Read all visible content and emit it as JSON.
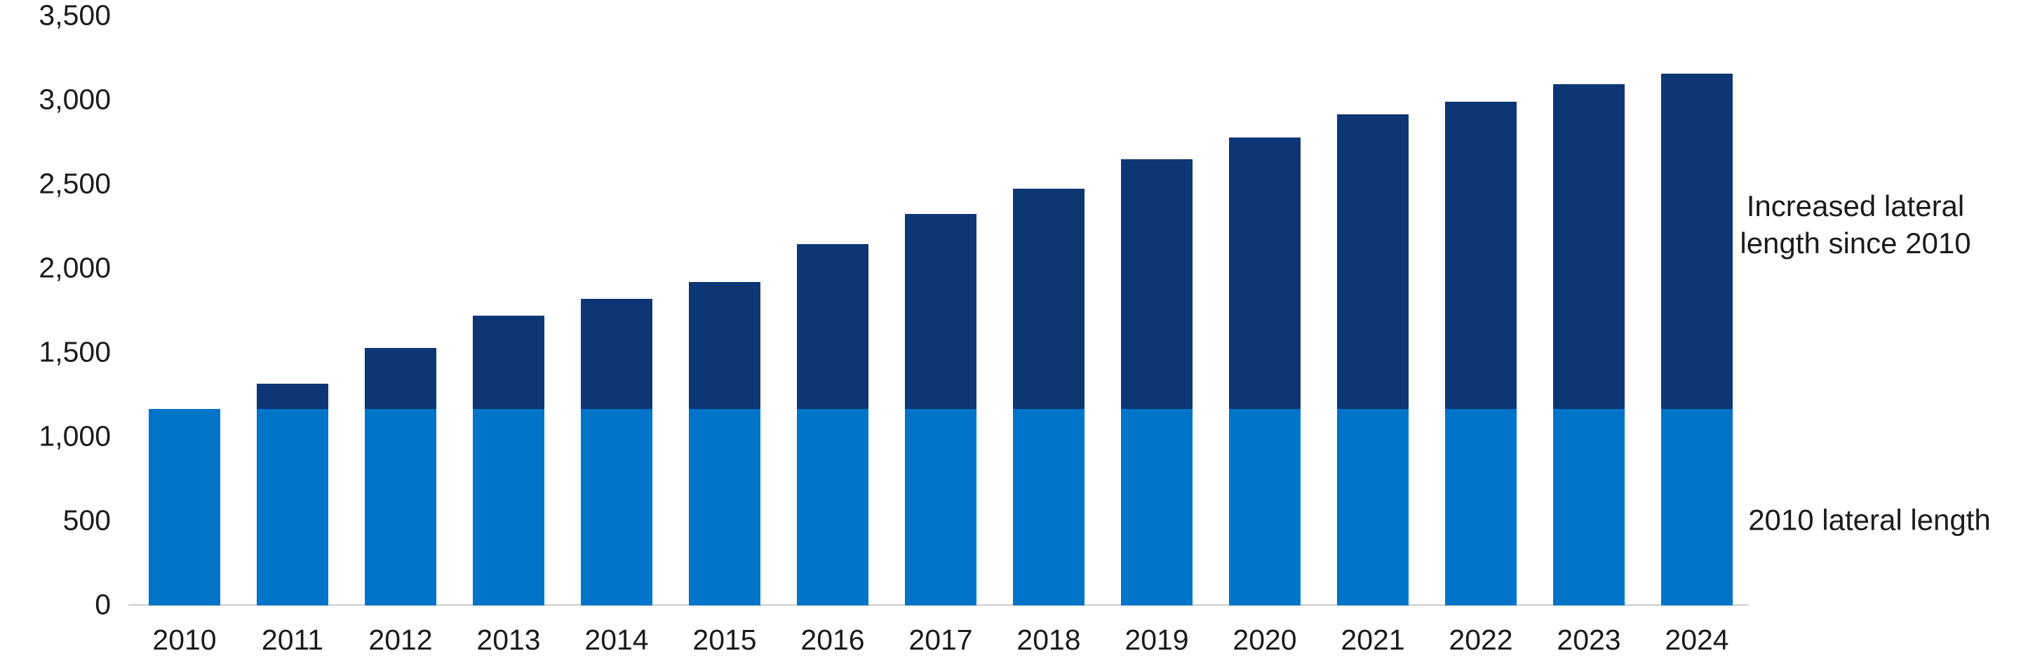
{
  "chart_data": {
    "type": "bar",
    "stacked": true,
    "title": "",
    "categories": [
      "2010",
      "2011",
      "2012",
      "2013",
      "2014",
      "2015",
      "2016",
      "2017",
      "2018",
      "2019",
      "2020",
      "2021",
      "2022",
      "2023",
      "2024"
    ],
    "series": [
      {
        "name": "2010 lateral length",
        "color": "#0074c8",
        "values": [
          1165,
          1165,
          1165,
          1165,
          1165,
          1165,
          1165,
          1165,
          1165,
          1165,
          1165,
          1165,
          1165,
          1165,
          1165
        ]
      },
      {
        "name": "Increased lateral length since 2010",
        "color": "#0d3774",
        "values": [
          0,
          150,
          365,
          555,
          655,
          755,
          980,
          1160,
          1310,
          1485,
          1615,
          1750,
          1825,
          1930,
          1995
        ]
      }
    ],
    "totals": [
      1165,
      1315,
      1530,
      1720,
      1820,
      1920,
      2145,
      2325,
      2475,
      2650,
      2780,
      2915,
      2990,
      3095,
      3160
    ],
    "xlabel": "",
    "ylabel": "",
    "ylim": [
      0,
      3500
    ],
    "ytick_interval": 500,
    "ytick_values": [
      0,
      500,
      1000,
      1500,
      2000,
      2500,
      3000,
      3500
    ],
    "ytick_labels": [
      "0",
      "500",
      "1,000",
      "1,500",
      "2,000",
      "2,500",
      "3,000",
      "3,500"
    ],
    "grid": false,
    "legend_position": "right-annotations",
    "annotations": [
      {
        "text": "Increased lateral length since 2010",
        "lines": [
          "Increased lateral",
          "length since 2010"
        ]
      },
      {
        "text": "2010 lateral length",
        "lines": [
          "2010 lateral length"
        ]
      }
    ],
    "axis_line_color": "#d9d9d9",
    "text_color": "#1b1b1b"
  }
}
